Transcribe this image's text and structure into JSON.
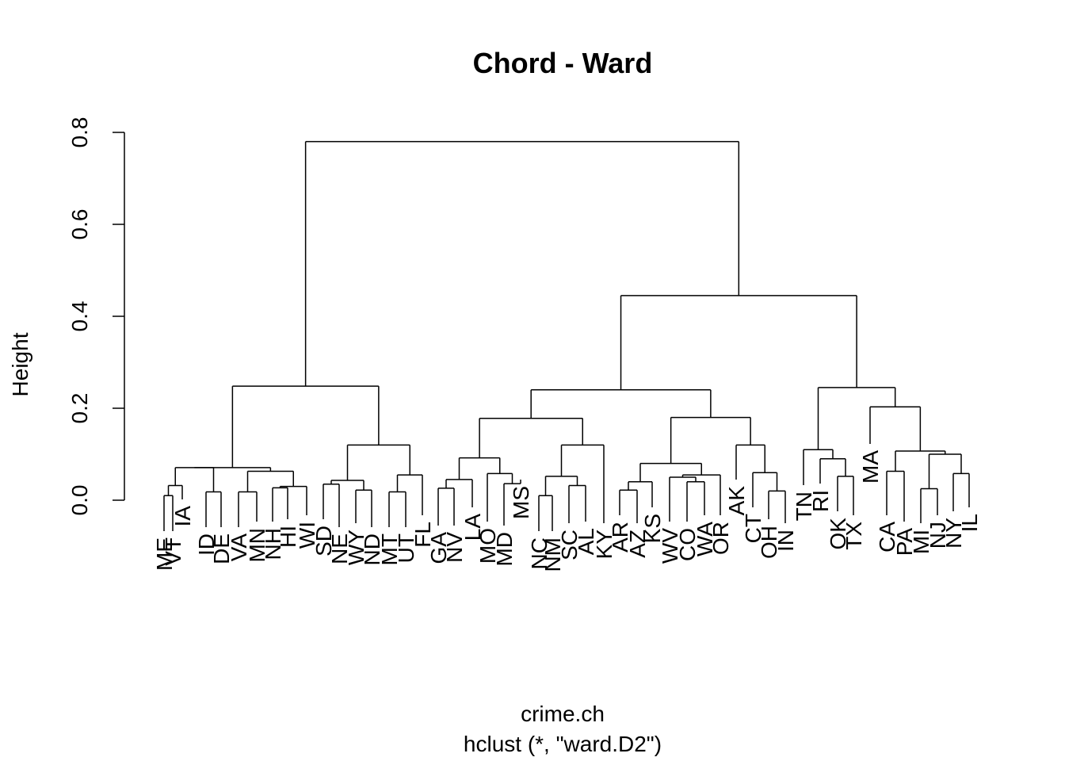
{
  "chart_data": {
    "type": "dendrogram",
    "title": "Chord - Ward",
    "xlabel": "crime.ch",
    "sublabel": "hclust (*, \"ward.D2\")",
    "ylabel": "Height",
    "ylim": [
      0,
      0.8
    ],
    "yticks": [
      0.0,
      0.2,
      0.4,
      0.6,
      0.8
    ],
    "ytick_labels": [
      "0.0",
      "0.2",
      "0.4",
      "0.6",
      "0.8"
    ],
    "leaves": [
      "ME",
      "VT",
      "IA",
      "ID",
      "DE",
      "VA",
      "MN",
      "NH",
      "HI",
      "WI",
      "SD",
      "NE",
      "WY",
      "ND",
      "MT",
      "UT",
      "FL",
      "GA",
      "NV",
      "LA",
      "MO",
      "MD",
      "MS",
      "NC",
      "NM",
      "SC",
      "AL",
      "KY",
      "AR",
      "AZ",
      "KS",
      "WV",
      "CO",
      "WA",
      "OR",
      "AK",
      "CT",
      "OH",
      "IN",
      "TN",
      "RI",
      "OK",
      "TX",
      "MA",
      "CA",
      "PA",
      "MI",
      "NJ",
      "NY",
      "IL"
    ],
    "merges": [
      [
        "ME",
        "VT",
        0.01
      ],
      [
        "ID",
        "DE",
        0.018
      ],
      [
        "IA",
        "ME+VT",
        0.032
      ],
      [
        "VA",
        "MN",
        0.018
      ],
      [
        "NH",
        "HI",
        0.027
      ],
      [
        "NH+HI",
        "WI",
        0.03
      ],
      [
        "VA+MN",
        "NH+HI+WI",
        0.063
      ],
      [
        "IA+ME+VT",
        "ID+DE",
        0.071
      ],
      [
        "IA+ME+VT+ID+DE",
        "VA+MN+NH+HI+WI",
        0.071
      ],
      [
        "SD",
        "NE",
        0.035
      ],
      [
        "WY",
        "ND",
        0.022
      ],
      [
        "SD+NE",
        "WY+ND",
        0.043
      ],
      [
        "MT",
        "UT",
        0.018
      ],
      [
        "FL",
        "MT+UT",
        0.055
      ],
      [
        "SD+NE+WY+ND",
        "FL+MT+UT",
        0.12
      ],
      [
        "group-A",
        "group-B",
        0.248
      ],
      [
        "GA",
        "NV",
        0.026
      ],
      [
        "LA",
        "GA+NV",
        0.045
      ],
      [
        "MD",
        "MS",
        0.036
      ],
      [
        "MO",
        "MD+MS",
        0.058
      ],
      [
        "LA+GA+NV",
        "MO+MD+MS",
        0.092
      ],
      [
        "NC",
        "NM",
        0.01
      ],
      [
        "SC",
        "AL",
        0.032
      ],
      [
        "NC+NM",
        "SC+AL",
        0.052
      ],
      [
        "KY",
        "NC+NM+SC+AL",
        0.12
      ],
      [
        "group-C",
        "group-D",
        0.178
      ],
      [
        "AR",
        "AZ",
        0.022
      ],
      [
        "KS",
        "AR+AZ",
        0.04
      ],
      [
        "CO",
        "WA",
        0.04
      ],
      [
        "WV",
        "CO+WA",
        0.05
      ],
      [
        "OR",
        "WV+CO+WA",
        0.055
      ],
      [
        "KS+AR+AZ",
        "OR+WV+CO+WA",
        0.08
      ],
      [
        "OH",
        "IN",
        0.02
      ],
      [
        "CT",
        "OH+IN",
        0.06
      ],
      [
        "AK",
        "CT+OH+IN",
        0.12
      ],
      [
        "group-E",
        "group-F",
        0.18
      ],
      [
        "group-CD",
        "group-EF",
        0.24
      ],
      [
        "OK",
        "TX",
        0.052
      ],
      [
        "RI",
        "OK+TX",
        0.09
      ],
      [
        "TN",
        "RI+OK+TX",
        0.11
      ],
      [
        "MI",
        "NJ",
        0.025
      ],
      [
        "NY",
        "IL",
        0.058
      ],
      [
        "MI+NJ",
        "NY+IL",
        0.1
      ],
      [
        "CA+PA",
        "MI+NJ+NY+IL",
        0.107
      ],
      [
        "MA",
        "CA+PA+MI+NJ+NY+IL",
        0.203
      ],
      [
        "group-G",
        "group-H",
        0.245
      ],
      [
        "group-CDEF",
        "group-GH",
        0.445
      ],
      [
        "group-AB",
        "group-CDEFGH",
        0.78
      ]
    ]
  }
}
